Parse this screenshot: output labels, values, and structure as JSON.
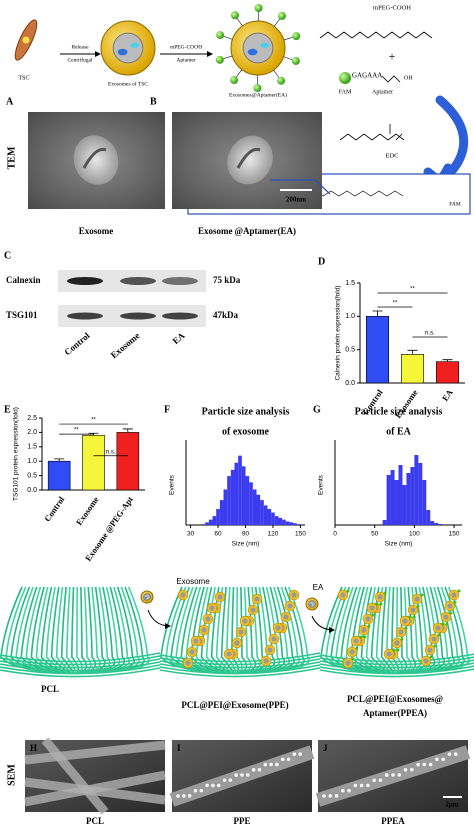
{
  "schematic": {
    "cell": "TSC",
    "step1": [
      "Release",
      "Centrifugal"
    ],
    "exosome": "Exosomes of TSC",
    "step2": [
      "mPEG-COOH",
      "Aptamer"
    ],
    "conjugate": "Exosomes@Aptamer(EA)",
    "reagent1": "mPEG-COOH",
    "plus": "+",
    "aptamer_sequence": "GAGAAA",
    "hydroxyl": "OH",
    "dye": "FAM",
    "aptamer": "Aptamer",
    "reagent2": "EDC",
    "product_dye": "FAM"
  },
  "tem": {
    "side_label": "TEM",
    "panels": [
      {
        "letter": "A",
        "caption": "Exosome"
      },
      {
        "letter": "B",
        "caption": "Exosome @Aptamer(EA)",
        "scale_bar": "200nm"
      }
    ]
  },
  "blot": {
    "letter": "C",
    "rows": [
      {
        "protein": "Calnexin",
        "size": "75 kDa"
      },
      {
        "protein": "TSG101",
        "size": "47kDa"
      }
    ],
    "lanes": [
      "Control",
      "Exosome",
      "EA"
    ]
  },
  "chart_data": [
    {
      "type": "bar",
      "letter": "D",
      "ylabel": "Calnexin protein expression(fold)",
      "categories": [
        "Control",
        "Exosome",
        "EA"
      ],
      "values": [
        1.0,
        0.43,
        0.32
      ],
      "errors": [
        0.08,
        0.06,
        0.03
      ],
      "colors": [
        "#2f4cf5",
        "#f5f53a",
        "#f02020"
      ],
      "ylim": [
        0,
        1.5
      ],
      "yticks": [
        {
          "value": 0,
          "label": "0.0"
        },
        0.5,
        {
          "value": 1,
          "label": "1.0"
        },
        1.5
      ],
      "annotations": [
        "**",
        "**",
        "n.s."
      ]
    },
    {
      "type": "bar",
      "letter": "E",
      "ylabel": "TSG101 protein expression(fold)",
      "categories": [
        "Control",
        "Exosome",
        "Exosome @PEG-Apt"
      ],
      "values": [
        1.0,
        1.9,
        2.0
      ],
      "errors": [
        0.08,
        0.07,
        0.12
      ],
      "colors": [
        "#2f4cf5",
        "#f5f53a",
        "#f02020"
      ],
      "ylim": [
        0,
        2.5
      ],
      "yticks": [
        {
          "value": 0,
          "label": "0.0"
        },
        0.5,
        {
          "value": 1,
          "label": "1.0"
        },
        1.5,
        {
          "value": 2,
          "label": "2.0"
        },
        2.5
      ],
      "annotations": [
        "**",
        "**",
        "n.s."
      ]
    },
    {
      "type": "histogram",
      "letter": "F",
      "title": "Particle size analysis",
      "subtitle": "of exosome",
      "xlabel": "Size (nm)",
      "ylabel": "Events",
      "color": "#3b3bf0",
      "bins": [
        30,
        34,
        38,
        42,
        46,
        50,
        54,
        58,
        62,
        66,
        70,
        74,
        78,
        82,
        86,
        90,
        94,
        98,
        102,
        106,
        110,
        114,
        118,
        122,
        126,
        130,
        134,
        138,
        142,
        146,
        150
      ],
      "counts": [
        0,
        0,
        0,
        1,
        3,
        6,
        10,
        18,
        28,
        40,
        55,
        62,
        70,
        78,
        66,
        55,
        48,
        40,
        34,
        28,
        22,
        18,
        14,
        10,
        8,
        6,
        4,
        3,
        2,
        1
      ],
      "xlim": [
        25,
        155
      ],
      "xticks": [
        30,
        60,
        90,
        120,
        150
      ],
      "ylim": [
        0,
        90
      ]
    },
    {
      "type": "histogram",
      "letter": "G",
      "title": "Particle size analysis",
      "subtitle": "of EA",
      "xlabel": "Size (nm)",
      "ylabel": "Events",
      "color": "#3b3bf0",
      "bins": [
        0,
        5,
        10,
        15,
        20,
        25,
        30,
        35,
        40,
        45,
        50,
        55,
        60,
        65,
        70,
        75,
        80,
        85,
        90,
        95,
        100,
        105,
        110,
        115,
        120,
        125,
        130,
        135,
        140,
        145,
        150
      ],
      "counts": [
        0,
        0,
        0,
        0,
        0,
        0,
        0,
        0,
        0,
        0,
        0,
        0,
        5,
        50,
        55,
        45,
        60,
        40,
        52,
        58,
        70,
        62,
        45,
        15,
        4,
        2,
        1,
        0,
        0,
        0
      ],
      "xlim": [
        0,
        160
      ],
      "xticks": [
        0,
        50,
        100,
        150
      ],
      "ylim": [
        0,
        80
      ]
    }
  ],
  "scaffold": {
    "steps": [
      "Exosome",
      "EA"
    ],
    "labels": [
      [
        "PCL"
      ],
      [
        "PCL@PEI@Exosome(PPE)"
      ],
      [
        "PCL@PEI@Exosomes@",
        "Aptamer(PPEA)"
      ]
    ]
  },
  "sem": {
    "side_label": "SEM",
    "panels": [
      {
        "letter": "H",
        "caption": "PCL"
      },
      {
        "letter": "I",
        "caption": "PPE"
      },
      {
        "letter": "J",
        "caption": "PPEA",
        "scale_bar": "2μm"
      }
    ]
  }
}
